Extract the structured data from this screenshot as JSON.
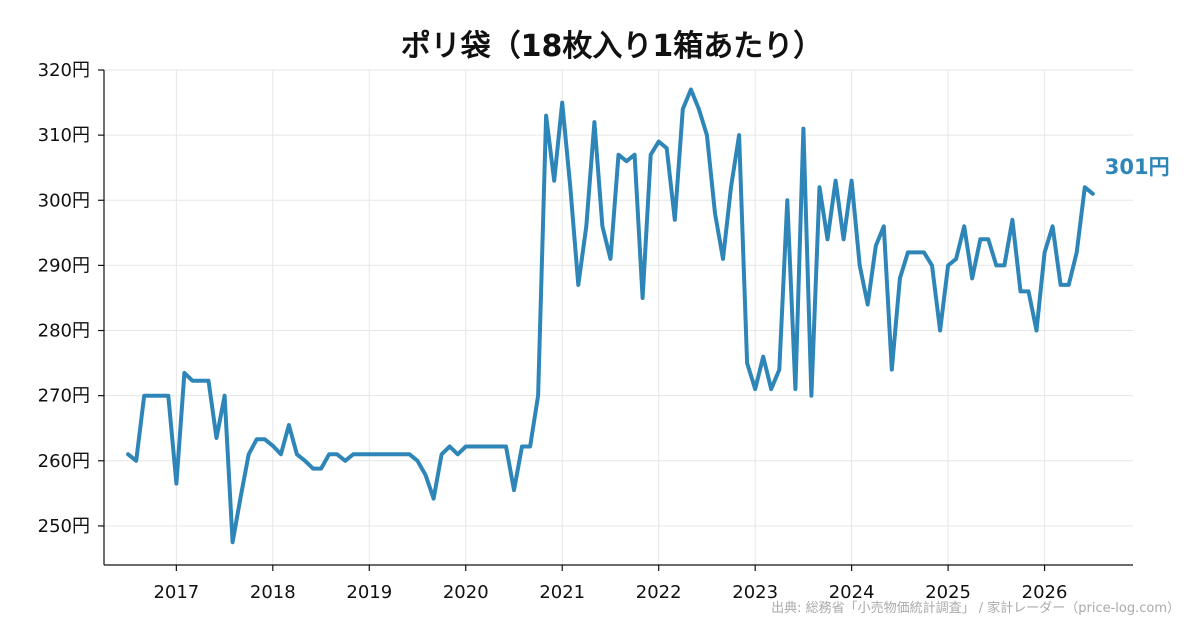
{
  "chart_data": {
    "type": "line",
    "title": "ポリ袋（18枚入り1箱あたり）",
    "xlabel": "",
    "ylabel": "",
    "y_unit": "円",
    "ylim": [
      244,
      320
    ],
    "xlim": [
      "2016-04",
      "2026-12"
    ],
    "yticks": [
      250,
      260,
      270,
      280,
      290,
      300,
      310,
      320
    ],
    "ytick_labels": [
      "250円",
      "260円",
      "270円",
      "280円",
      "290円",
      "300円",
      "310円",
      "320円"
    ],
    "xticks": [
      "2017",
      "2018",
      "2019",
      "2020",
      "2021",
      "2022",
      "2023",
      "2024",
      "2025",
      "2026"
    ],
    "grid": true,
    "legend": "none",
    "series": [
      {
        "color": "#2e86b8",
        "end_label": "301円",
        "points": [
          [
            "2016-07",
            261
          ],
          [
            "2016-08",
            260
          ],
          [
            "2016-09",
            270
          ],
          [
            "2016-10",
            270
          ],
          [
            "2016-11",
            270
          ],
          [
            "2016-12",
            270
          ],
          [
            "2017-01",
            256.5
          ],
          [
            "2017-02",
            273.5
          ],
          [
            "2017-03",
            272.3
          ],
          [
            "2017-04",
            272.3
          ],
          [
            "2017-05",
            272.3
          ],
          [
            "2017-06",
            263.5
          ],
          [
            "2017-07",
            270
          ],
          [
            "2017-08",
            247.5
          ],
          [
            "2017-09",
            254.5
          ],
          [
            "2017-10",
            261
          ],
          [
            "2017-11",
            263.3
          ],
          [
            "2017-12",
            263.3
          ],
          [
            "2018-01",
            262.3
          ],
          [
            "2018-02",
            261
          ],
          [
            "2018-03",
            265.5
          ],
          [
            "2018-04",
            261
          ],
          [
            "2018-05",
            260
          ],
          [
            "2018-06",
            258.8
          ],
          [
            "2018-07",
            258.8
          ],
          [
            "2018-08",
            261
          ],
          [
            "2018-09",
            261
          ],
          [
            "2018-10",
            260
          ],
          [
            "2018-11",
            261
          ],
          [
            "2018-12",
            261
          ],
          [
            "2019-01",
            261
          ],
          [
            "2019-02",
            261
          ],
          [
            "2019-03",
            261
          ],
          [
            "2019-04",
            261
          ],
          [
            "2019-05",
            261
          ],
          [
            "2019-06",
            261
          ],
          [
            "2019-07",
            260
          ],
          [
            "2019-08",
            257.8
          ],
          [
            "2019-09",
            254.2
          ],
          [
            "2019-10",
            261
          ],
          [
            "2019-11",
            262.2
          ],
          [
            "2019-12",
            261
          ],
          [
            "2020-01",
            262.2
          ],
          [
            "2020-02",
            262.2
          ],
          [
            "2020-03",
            262.2
          ],
          [
            "2020-04",
            262.2
          ],
          [
            "2020-05",
            262.2
          ],
          [
            "2020-06",
            262.2
          ],
          [
            "2020-07",
            255.5
          ],
          [
            "2020-08",
            262.2
          ],
          [
            "2020-09",
            262.2
          ],
          [
            "2020-10",
            270
          ],
          [
            "2020-11",
            313
          ],
          [
            "2020-12",
            303
          ],
          [
            "2021-01",
            315
          ],
          [
            "2021-02",
            302
          ],
          [
            "2021-03",
            287
          ],
          [
            "2021-04",
            296
          ],
          [
            "2021-05",
            312
          ],
          [
            "2021-06",
            296
          ],
          [
            "2021-07",
            291
          ],
          [
            "2021-08",
            307
          ],
          [
            "2021-09",
            306
          ],
          [
            "2021-10",
            307
          ],
          [
            "2021-11",
            285
          ],
          [
            "2021-12",
            307
          ],
          [
            "2022-01",
            309
          ],
          [
            "2022-02",
            308
          ],
          [
            "2022-03",
            297
          ],
          [
            "2022-04",
            314
          ],
          [
            "2022-05",
            317
          ],
          [
            "2022-06",
            314
          ],
          [
            "2022-07",
            310
          ],
          [
            "2022-08",
            298
          ],
          [
            "2022-09",
            291
          ],
          [
            "2022-10",
            302
          ],
          [
            "2022-11",
            310
          ],
          [
            "2022-12",
            275
          ],
          [
            "2023-01",
            271
          ],
          [
            "2023-02",
            276
          ],
          [
            "2023-03",
            271
          ],
          [
            "2023-04",
            274
          ],
          [
            "2023-05",
            300
          ],
          [
            "2023-06",
            271
          ],
          [
            "2023-07",
            311
          ],
          [
            "2023-08",
            270
          ],
          [
            "2023-09",
            302
          ],
          [
            "2023-10",
            294
          ],
          [
            "2023-11",
            303
          ],
          [
            "2023-12",
            294
          ],
          [
            "2024-01",
            303
          ],
          [
            "2024-02",
            290
          ],
          [
            "2024-03",
            284
          ],
          [
            "2024-04",
            293
          ],
          [
            "2024-05",
            296
          ],
          [
            "2024-06",
            274
          ],
          [
            "2024-07",
            288
          ],
          [
            "2024-08",
            292
          ],
          [
            "2024-09",
            292
          ],
          [
            "2024-10",
            292
          ],
          [
            "2024-11",
            290
          ],
          [
            "2024-12",
            280
          ],
          [
            "2025-01",
            290
          ],
          [
            "2025-02",
            291
          ],
          [
            "2025-03",
            296
          ],
          [
            "2025-04",
            288
          ],
          [
            "2025-05",
            294
          ],
          [
            "2025-06",
            294
          ],
          [
            "2025-07",
            290
          ],
          [
            "2025-08",
            290
          ],
          [
            "2025-09",
            297
          ],
          [
            "2025-10",
            286
          ],
          [
            "2025-11",
            286
          ],
          [
            "2025-12",
            280
          ],
          [
            "2026-01",
            292
          ],
          [
            "2026-02",
            296
          ],
          [
            "2026-03",
            287
          ],
          [
            "2026-04",
            287
          ],
          [
            "2026-05",
            292
          ],
          [
            "2026-06",
            302
          ],
          [
            "2026-07",
            301
          ]
        ]
      }
    ]
  },
  "source_text": "出典: 総務省「小売物価統計調査」 / 家計レーダー（price-log.com）"
}
